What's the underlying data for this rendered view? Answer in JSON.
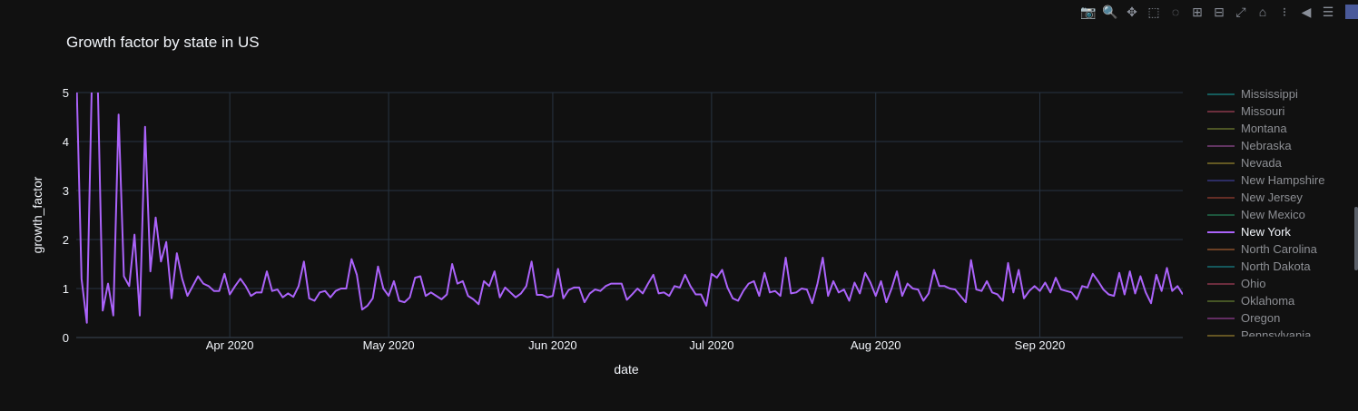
{
  "toolbar": {
    "buttons": [
      {
        "name": "camera-icon",
        "glyph": "📷"
      },
      {
        "name": "zoom-icon",
        "glyph": "🔍",
        "active": true
      },
      {
        "name": "pan-icon",
        "glyph": "✥"
      },
      {
        "name": "box-select-icon",
        "glyph": "⬚"
      },
      {
        "name": "lasso-select-icon",
        "glyph": "◌"
      },
      {
        "name": "zoom-in-icon",
        "glyph": "⊞"
      },
      {
        "name": "zoom-out-icon",
        "glyph": "⊟"
      },
      {
        "name": "autoscale-icon",
        "glyph": "⤢"
      },
      {
        "name": "reset-axes-icon",
        "glyph": "⌂"
      },
      {
        "name": "spike-lines-icon",
        "glyph": "⁝"
      },
      {
        "name": "hover-closest-icon",
        "glyph": "◀"
      },
      {
        "name": "hover-compare-icon",
        "glyph": "☰"
      }
    ]
  },
  "colors": {
    "background": "#111111",
    "grid": "#283442",
    "text": "#f2f5fa",
    "muted": "#8d8f94",
    "new_york": "#ab63fa"
  },
  "chart_data": {
    "type": "line",
    "title": "Growth factor by state in US",
    "xlabel": "date",
    "ylabel": "growth_factor",
    "x_start": "2020-03-03",
    "x_end": "2020-09-28",
    "x_ticks": [
      {
        "date": "2020-04-01",
        "label": "Apr 2020"
      },
      {
        "date": "2020-05-01",
        "label": "May 2020"
      },
      {
        "date": "2020-06-01",
        "label": "Jun 2020"
      },
      {
        "date": "2020-07-01",
        "label": "Jul 2020"
      },
      {
        "date": "2020-08-01",
        "label": "Aug 2020"
      },
      {
        "date": "2020-09-01",
        "label": "Sep 2020"
      }
    ],
    "ylim": [
      0,
      5
    ],
    "y_ticks": [
      0,
      1,
      2,
      3,
      4,
      5
    ],
    "grid": true,
    "legend_position": "right",
    "series": [
      {
        "name": "New York",
        "color": "#ab63fa",
        "start_date": "2020-03-03",
        "values": [
          5.5,
          1.2,
          0.3,
          5.5,
          5.5,
          0.55,
          1.1,
          0.45,
          4.55,
          1.25,
          1.05,
          2.1,
          0.45,
          4.3,
          1.35,
          2.45,
          1.55,
          1.95,
          0.8,
          1.72,
          1.2,
          0.85,
          1.05,
          1.25,
          1.1,
          1.05,
          0.95,
          0.95,
          1.3,
          0.88,
          1.05,
          1.2,
          1.05,
          0.85,
          0.92,
          0.92,
          1.35,
          0.95,
          0.98,
          0.82,
          0.9,
          0.83,
          1.05,
          1.55,
          0.8,
          0.75,
          0.92,
          0.95,
          0.82,
          0.95,
          1.0,
          1.0,
          1.6,
          1.28,
          0.57,
          0.65,
          0.8,
          1.45,
          1.0,
          0.85,
          1.15,
          0.75,
          0.72,
          0.82,
          1.22,
          1.25,
          0.85,
          0.92,
          0.85,
          0.78,
          0.88,
          1.5,
          1.1,
          1.15,
          0.85,
          0.78,
          0.68,
          1.15,
          1.05,
          1.35,
          0.82,
          1.02,
          0.92,
          0.82,
          0.9,
          1.05,
          1.55,
          0.87,
          0.87,
          0.82,
          0.85,
          1.4,
          0.8,
          0.97,
          1.02,
          1.02,
          0.72,
          0.9,
          0.98,
          0.95,
          1.05,
          1.1,
          1.1,
          1.1,
          0.77,
          0.88,
          1.0,
          0.9,
          1.1,
          1.28,
          0.9,
          0.92,
          0.85,
          1.05,
          1.02,
          1.28,
          1.05,
          0.88,
          0.88,
          0.65,
          1.3,
          1.22,
          1.38,
          1.02,
          0.8,
          0.75,
          0.95,
          1.1,
          1.15,
          0.85,
          1.32,
          0.92,
          0.95,
          0.85,
          1.63,
          0.9,
          0.92,
          1.0,
          0.98,
          0.7,
          1.1,
          1.63,
          0.85,
          1.15,
          0.92,
          0.98,
          0.75,
          1.12,
          0.9,
          1.32,
          1.12,
          0.85,
          1.15,
          0.72,
          1.0,
          1.35,
          0.85,
          1.1,
          1.0,
          0.98,
          0.75,
          0.9,
          1.38,
          1.05,
          1.05,
          1.0,
          0.98,
          0.85,
          0.72,
          1.58,
          0.98,
          0.95,
          1.15,
          0.92,
          0.88,
          0.75,
          1.52,
          0.92,
          1.38,
          0.8,
          0.95,
          1.05,
          0.95,
          1.12,
          0.92,
          1.22,
          0.98,
          0.95,
          0.92,
          0.78,
          1.05,
          1.02,
          1.3,
          1.15,
          0.98,
          0.88,
          0.85,
          1.32,
          0.88,
          1.35,
          0.9,
          1.25,
          0.92,
          0.7,
          1.28,
          0.95,
          1.42,
          0.95,
          1.05,
          0.88
        ]
      }
    ],
    "legend": [
      {
        "label": "Mississippi",
        "color": "#19a7a7",
        "visible": false
      },
      {
        "label": "Missouri",
        "color": "#c84e6a",
        "visible": false
      },
      {
        "label": "Montana",
        "color": "#8a9a3a",
        "visible": false
      },
      {
        "label": "Nebraska",
        "color": "#b45ab4",
        "visible": false
      },
      {
        "label": "Nevada",
        "color": "#b8a235",
        "visible": false
      },
      {
        "label": "New Hampshire",
        "color": "#4a4ab8",
        "visible": false
      },
      {
        "label": "New Jersey",
        "color": "#b84a3a",
        "visible": false
      },
      {
        "label": "New Mexico",
        "color": "#2a9a6a",
        "visible": false
      },
      {
        "label": "New York",
        "color": "#ab63fa",
        "visible": true
      },
      {
        "label": "North Carolina",
        "color": "#c8703a",
        "visible": false
      },
      {
        "label": "North Dakota",
        "color": "#1aa0a8",
        "visible": false
      },
      {
        "label": "Ohio",
        "color": "#c84a6a",
        "visible": false
      },
      {
        "label": "Oklahoma",
        "color": "#7a9a3a",
        "visible": false
      },
      {
        "label": "Oregon",
        "color": "#b44ab4",
        "visible": false
      },
      {
        "label": "Pennsylvania",
        "color": "#b89a35",
        "visible": false
      }
    ]
  }
}
